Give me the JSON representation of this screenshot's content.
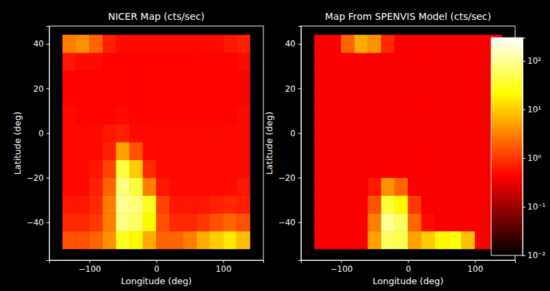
{
  "chart_data": [
    {
      "type": "heatmap",
      "title": "NICER Map (cts/sec)",
      "x_label": "Longitude (deg)",
      "y_label": "Latitude (deg)",
      "xlim": [
        -160,
        160
      ],
      "ylim": [
        -57,
        48
      ],
      "xticks": [
        {
          "value": -100,
          "label": "−100"
        },
        0,
        100
      ],
      "yticks": [
        {
          "value": -40,
          "label": "−40"
        },
        {
          "value": -20,
          "label": "−20"
        },
        0,
        20,
        40
      ],
      "x_edges": [
        -140,
        -120,
        -100,
        -80,
        -60,
        -40,
        -20,
        0,
        20,
        40,
        60,
        80,
        100,
        120,
        140
      ],
      "y_edges": [
        -52,
        -44,
        -36,
        -28,
        -20,
        -12,
        -4,
        4,
        12,
        20,
        28,
        36,
        44
      ],
      "values": [
        [
          1.5,
          1.5,
          2,
          4,
          30,
          20,
          6,
          2,
          2,
          3,
          6,
          10,
          15,
          8
        ],
        [
          0.8,
          0.8,
          1,
          3,
          80,
          60,
          20,
          1.5,
          0.8,
          0.8,
          1,
          1.5,
          2,
          1.5
        ],
        [
          0.6,
          0.6,
          0.8,
          3,
          100,
          80,
          30,
          1.2,
          0.6,
          0.6,
          0.6,
          0.7,
          0.8,
          0.7
        ],
        [
          0.5,
          0.5,
          0.7,
          2,
          80,
          40,
          3,
          0.6,
          0.5,
          0.5,
          0.5,
          0.5,
          0.5,
          0.6
        ],
        [
          0.5,
          0.5,
          0.6,
          1.2,
          40,
          10,
          0.8,
          0.5,
          0.5,
          0.5,
          0.5,
          0.5,
          0.5,
          0.5
        ],
        [
          0.5,
          0.5,
          0.5,
          0.7,
          5,
          1.5,
          0.5,
          0.5,
          0.5,
          0.5,
          0.5,
          0.5,
          0.5,
          0.5
        ],
        [
          0.5,
          0.5,
          0.5,
          0.6,
          0.7,
          0.5,
          0.5,
          0.5,
          0.5,
          0.5,
          0.5,
          0.5,
          0.5,
          0.5
        ],
        [
          0.5,
          0.45,
          0.45,
          0.45,
          0.5,
          0.45,
          0.45,
          0.45,
          0.45,
          0.45,
          0.45,
          0.45,
          0.45,
          0.5
        ],
        [
          0.45,
          0.45,
          0.45,
          0.45,
          0.45,
          0.45,
          0.45,
          0.45,
          0.45,
          0.45,
          0.45,
          0.45,
          0.45,
          0.45
        ],
        [
          0.45,
          0.45,
          0.45,
          0.45,
          0.45,
          0.45,
          0.45,
          0.45,
          0.45,
          0.45,
          0.45,
          0.45,
          0.45,
          0.45
        ],
        [
          0.6,
          0.5,
          0.5,
          0.45,
          0.45,
          0.45,
          0.45,
          0.45,
          0.45,
          0.45,
          0.45,
          0.45,
          0.45,
          0.5
        ],
        [
          3,
          4,
          2,
          0.7,
          0.5,
          0.5,
          0.5,
          0.5,
          0.5,
          0.5,
          0.5,
          0.5,
          0.6,
          0.7
        ]
      ]
    },
    {
      "type": "heatmap",
      "title": "Map From SPENVIS Model (cts/sec)",
      "x_label": "Longitude (deg)",
      "y_label": "Latitude (deg)",
      "xlim": [
        -160,
        160
      ],
      "ylim": [
        -57,
        48
      ],
      "xticks": [
        {
          "value": -100,
          "label": "−100"
        },
        0,
        100
      ],
      "yticks": [
        {
          "value": -40,
          "label": "−40"
        },
        {
          "value": -20,
          "label": "−20"
        },
        0,
        20,
        40
      ],
      "x_edges": [
        -140,
        -120,
        -100,
        -80,
        -60,
        -40,
        -20,
        0,
        20,
        40,
        60,
        80,
        100,
        120,
        140
      ],
      "y_edges": [
        -52,
        -44,
        -36,
        -28,
        -20,
        -12,
        -4,
        4,
        12,
        20,
        28,
        36,
        44
      ],
      "values": [
        [
          0.4,
          0.4,
          0.4,
          0.4,
          5,
          60,
          50,
          5,
          10,
          20,
          25,
          8,
          0.4,
          0.4
        ],
        [
          0.4,
          0.4,
          0.4,
          0.4,
          3,
          100,
          60,
          2,
          0.5,
          0.4,
          0.4,
          0.4,
          0.4,
          0.4
        ],
        [
          0.4,
          0.4,
          0.4,
          0.4,
          1.5,
          40,
          20,
          1,
          0.4,
          0.4,
          0.4,
          0.4,
          0.4,
          0.4
        ],
        [
          0.4,
          0.4,
          0.4,
          0.4,
          0.6,
          4,
          2,
          0.4,
          0.4,
          0.4,
          0.4,
          0.4,
          0.4,
          0.4
        ],
        [
          0.4,
          0.4,
          0.4,
          0.4,
          0.4,
          0.4,
          0.4,
          0.4,
          0.4,
          0.4,
          0.4,
          0.4,
          0.4,
          0.4
        ],
        [
          0.4,
          0.4,
          0.4,
          0.4,
          0.4,
          0.4,
          0.4,
          0.4,
          0.4,
          0.4,
          0.4,
          0.4,
          0.4,
          0.4
        ],
        [
          0.4,
          0.4,
          0.4,
          0.4,
          0.4,
          0.4,
          0.4,
          0.4,
          0.4,
          0.4,
          0.4,
          0.4,
          0.4,
          0.4
        ],
        [
          0.4,
          0.4,
          0.4,
          0.4,
          0.4,
          0.4,
          0.4,
          0.4,
          0.4,
          0.4,
          0.4,
          0.4,
          0.4,
          0.4
        ],
        [
          0.4,
          0.4,
          0.4,
          0.4,
          0.4,
          0.4,
          0.4,
          0.4,
          0.4,
          0.4,
          0.4,
          0.4,
          0.4,
          0.4
        ],
        [
          0.4,
          0.4,
          0.4,
          0.4,
          0.4,
          0.4,
          0.4,
          0.4,
          0.4,
          0.4,
          0.4,
          0.4,
          0.4,
          0.4
        ],
        [
          0.4,
          0.4,
          0.4,
          0.4,
          0.4,
          0.4,
          0.4,
          0.4,
          0.4,
          0.4,
          0.4,
          0.4,
          0.4,
          0.4
        ],
        [
          0.4,
          0.4,
          2,
          6,
          4,
          0.8,
          0.4,
          0.4,
          0.4,
          0.4,
          0.4,
          0.4,
          0.4,
          0.4
        ]
      ],
      "color_range": [
        0.01,
        300
      ],
      "color_ticks": [
        {
          "value": 0.01,
          "label": "10⁻²"
        },
        {
          "value": 0.1,
          "label": "10⁻¹"
        },
        {
          "value": 1,
          "label": "10⁰"
        },
        {
          "value": 10,
          "label": "10¹"
        },
        {
          "value": 100,
          "label": "10²"
        }
      ]
    }
  ]
}
